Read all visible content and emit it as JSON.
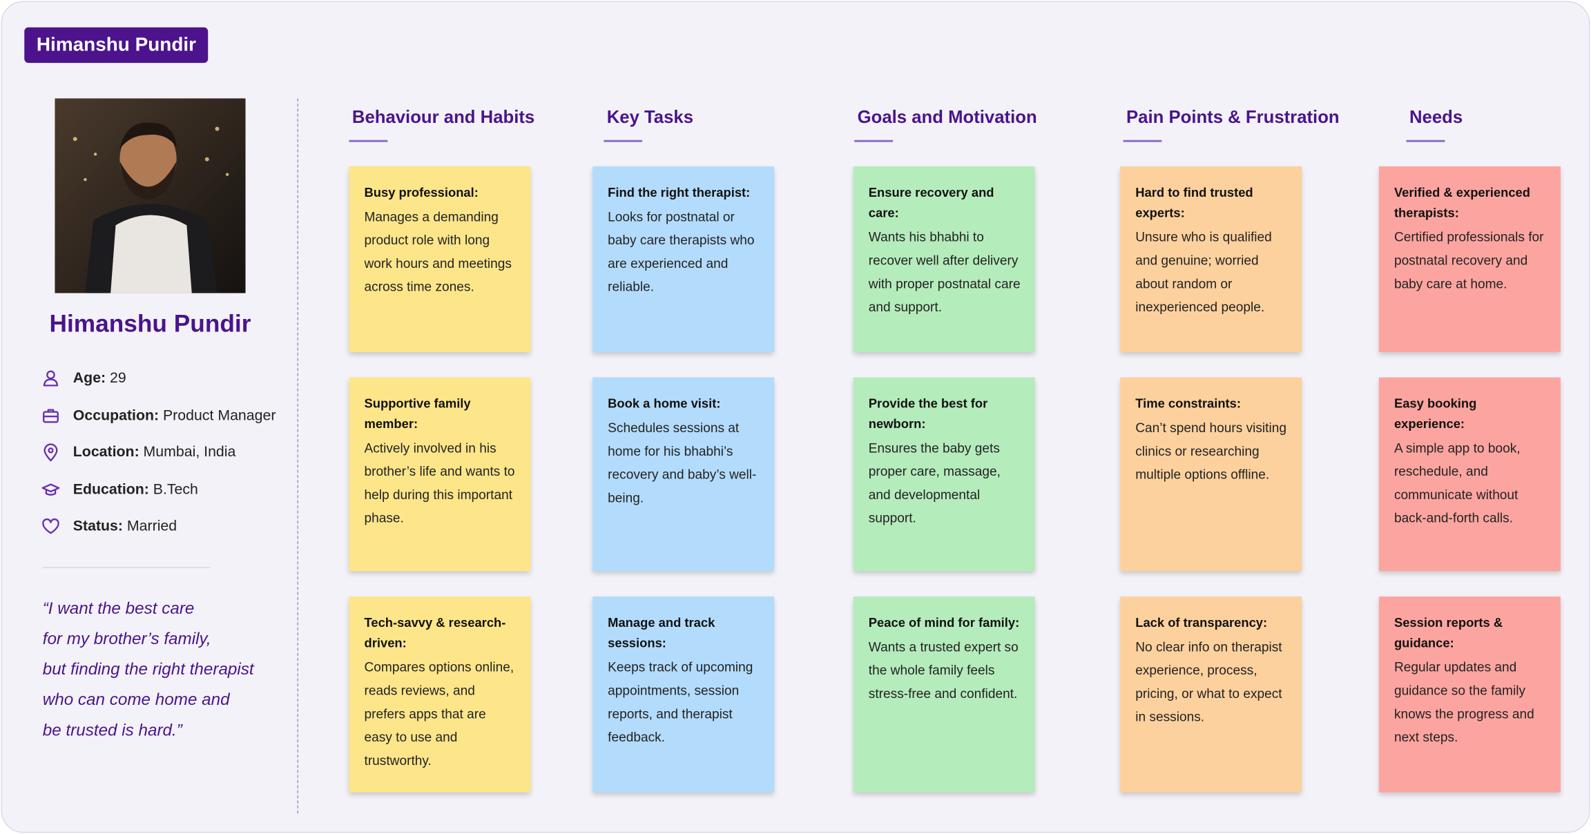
{
  "header": {
    "tag": "Himanshu Pundir"
  },
  "profile": {
    "name": "Himanshu Pundir",
    "fields": [
      {
        "label": "Age:",
        "value": "29"
      },
      {
        "label": "Occupation:",
        "value": "Product Manager"
      },
      {
        "label": "Location:",
        "value": "Mumbai, India"
      },
      {
        "label": "Education:",
        "value": "B.Tech"
      },
      {
        "label": "Status:",
        "value": "Married"
      }
    ],
    "quote": [
      "“I want the best care",
      "for my brother’s family,",
      "but finding the right therapist",
      "who can come home and",
      "be trusted is hard.”"
    ]
  },
  "columns": [
    {
      "title": "Behaviour and Habits",
      "color": "#fde68a",
      "notes": [
        {
          "heading": "Busy professional:",
          "body": "Manages a demanding product role with long work hours and meetings across time zones."
        },
        {
          "heading": "Supportive family member:",
          "body": "Actively involved in his brother’s life and wants to help during this important phase."
        },
        {
          "heading": "Tech-savvy & research-driven:",
          "body": "Compares options online, reads reviews, and prefers apps that are easy to use and trustworthy."
        }
      ]
    },
    {
      "title": "Key Tasks",
      "color": "#b3dcfc",
      "notes": [
        {
          "heading": "Find the right therapist:",
          "body": "Looks for postnatal or baby care therapists who are experienced and reliable."
        },
        {
          "heading": "Book a home visit:",
          "body": "Schedules sessions at home for his bhabhi’s recovery and baby’s well-being."
        },
        {
          "heading": "Manage and track sessions:",
          "body": "Keeps track of upcoming appointments, session reports, and therapist feedback."
        }
      ]
    },
    {
      "title": "Goals and Motivation",
      "color": "#b5ecbc",
      "notes": [
        {
          "heading": "Ensure recovery and care:",
          "body": "Wants his bhabhi to recover well after delivery with proper postnatal care and support."
        },
        {
          "heading": "Provide the best for newborn:",
          "body": "Ensures the baby gets proper care, massage, and developmental support."
        },
        {
          "heading": "Peace of mind for family:",
          "body": "Wants a trusted expert so the whole family feels stress-free and confident."
        }
      ]
    },
    {
      "title": "Pain Points & Frustration",
      "color": "#fdd19e",
      "notes": [
        {
          "heading": "Hard to find trusted experts:",
          "body": "Unsure who is qualified and genuine; worried about random or inexperienced people."
        },
        {
          "heading": "Time constraints:",
          "body": "Can’t spend hours visiting clinics or researching multiple options offline."
        },
        {
          "heading": "Lack of transparency:",
          "body": "No clear info on therapist experience, process, pricing, or what to expect in sessions."
        }
      ]
    },
    {
      "title": "Needs",
      "color": "#fca5a0",
      "notes": [
        {
          "heading": "Verified & experienced therapists:",
          "body": "Certified professionals for postnatal recovery and baby care at home."
        },
        {
          "heading": "Easy booking experience:",
          "body": "A simple app to book, reschedule, and communicate without back-and-forth calls."
        },
        {
          "heading": "Session reports & guidance:",
          "body": "Regular updates and guidance so the family knows the progress and next steps."
        }
      ]
    }
  ]
}
